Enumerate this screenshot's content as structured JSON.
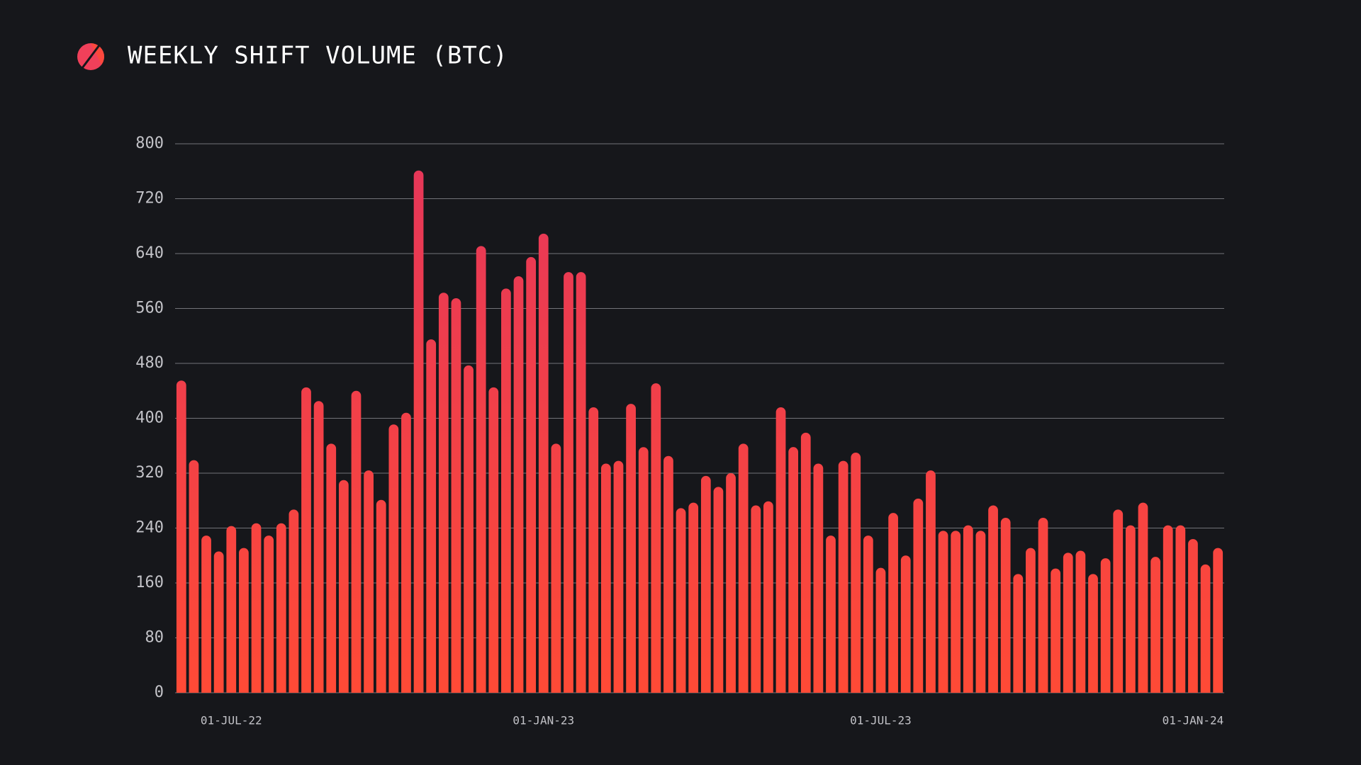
{
  "chart_data": {
    "type": "bar",
    "title": "WEEKLY SHIFT VOLUME (BTC)",
    "categories": [
      null,
      null,
      null,
      null,
      "01-JUL-22",
      null,
      null,
      null,
      null,
      null,
      null,
      null,
      null,
      null,
      null,
      null,
      null,
      null,
      null,
      null,
      null,
      null,
      null,
      null,
      null,
      null,
      null,
      null,
      null,
      "01-JAN-23",
      null,
      null,
      null,
      null,
      null,
      null,
      null,
      null,
      null,
      null,
      null,
      null,
      null,
      null,
      null,
      null,
      null,
      null,
      null,
      null,
      null,
      null,
      null,
      null,
      null,
      null,
      "01-JUL-23",
      null,
      null,
      null,
      null,
      null,
      null,
      null,
      null,
      null,
      null,
      null,
      null,
      null,
      null,
      null,
      null,
      null,
      null,
      null,
      null,
      null,
      null,
      null,
      null,
      "01-JAN-24",
      null,
      null
    ],
    "values": [
      455,
      339,
      229,
      206,
      243,
      211,
      247,
      229,
      247,
      267,
      445,
      425,
      363,
      310,
      440,
      324,
      281,
      391,
      408,
      761,
      515,
      583,
      575,
      477,
      651,
      445,
      589,
      607,
      635,
      669,
      363,
      613,
      613,
      416,
      334,
      338,
      421,
      358,
      451,
      345,
      269,
      277,
      316,
      300,
      320,
      363,
      273,
      279,
      416,
      358,
      379,
      334,
      229,
      338,
      350,
      229,
      182,
      262,
      200,
      283,
      324,
      236,
      236,
      244,
      236,
      273,
      255,
      173,
      211,
      255,
      181,
      204,
      207,
      173,
      196,
      267,
      244,
      277,
      198,
      244,
      244,
      224,
      187,
      211
    ],
    "color": [
      "#e5365a",
      "#ff4a36"
    ],
    "ylim": [
      0,
      800
    ],
    "yticks": [
      0,
      80,
      160,
      240,
      320,
      400,
      480,
      560,
      640,
      720,
      800
    ],
    "grid": true
  }
}
